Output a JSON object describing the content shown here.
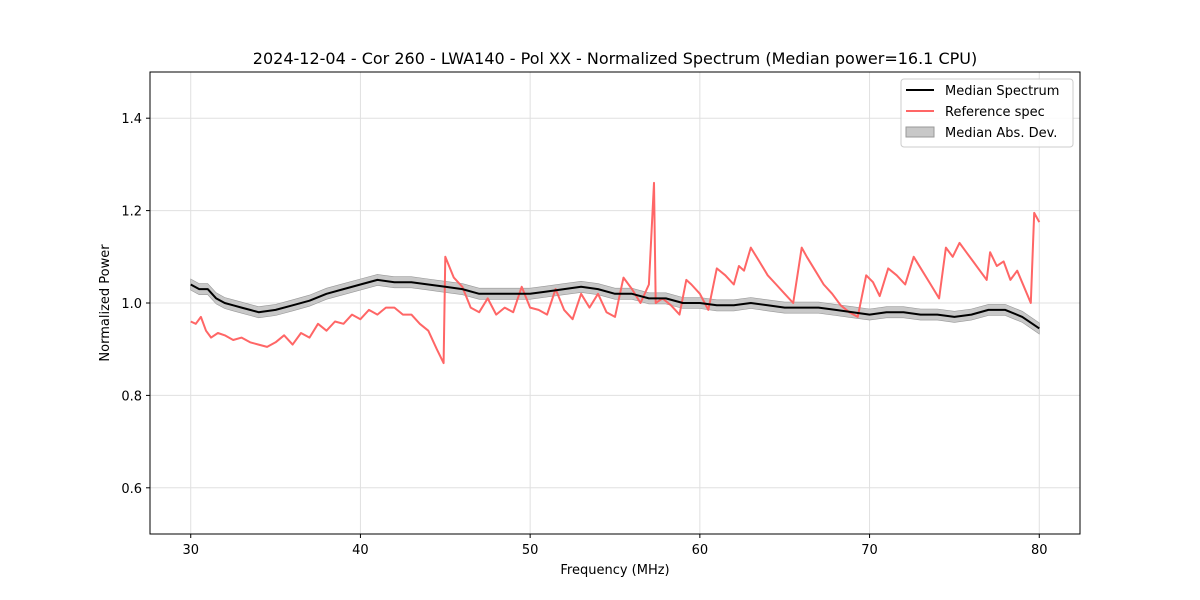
{
  "chart_data": {
    "type": "line",
    "title": "2024-12-04 - Cor 260 - LWA140 - Pol XX - Normalized Spectrum (Median power=16.1 CPU)",
    "xlabel": "Frequency (MHz)",
    "ylabel": "Normalized Power",
    "xlim": [
      27.6,
      82.4
    ],
    "ylim": [
      0.5,
      1.5
    ],
    "xticks": [
      30,
      40,
      50,
      60,
      70,
      80
    ],
    "yticks": [
      0.6,
      0.8,
      1.0,
      1.2,
      1.4
    ],
    "xtick_labels": [
      "30",
      "40",
      "50",
      "60",
      "70",
      "80"
    ],
    "ytick_labels": [
      "0.6",
      "0.8",
      "1.0",
      "1.2",
      "1.4"
    ],
    "grid": true,
    "legend_position": "top-right",
    "legend": [
      "Median Spectrum",
      "Reference spec",
      "Median Abs. Dev."
    ],
    "colors": {
      "median": "#000000",
      "reference": "#ff6666",
      "mad_fill": "#c8c8c8",
      "grid": "#e0e0e0"
    },
    "series": [
      {
        "name": "Median Spectrum",
        "x": [
          30,
          30.5,
          31,
          31.5,
          32,
          32.5,
          33,
          33.5,
          34,
          35,
          36,
          37,
          38,
          39,
          40,
          41,
          42,
          43,
          44,
          45,
          46,
          47,
          48,
          49,
          50,
          51,
          52,
          53,
          54,
          55,
          56,
          57,
          58,
          59,
          60,
          61,
          62,
          63,
          64,
          65,
          66,
          67,
          68,
          69,
          70,
          71,
          72,
          73,
          74,
          75,
          76,
          77,
          78,
          79,
          80
        ],
        "values": [
          1.04,
          1.03,
          1.03,
          1.01,
          1.0,
          0.995,
          0.99,
          0.985,
          0.98,
          0.985,
          0.995,
          1.005,
          1.02,
          1.03,
          1.04,
          1.05,
          1.045,
          1.045,
          1.04,
          1.035,
          1.03,
          1.02,
          1.02,
          1.02,
          1.02,
          1.025,
          1.03,
          1.035,
          1.03,
          1.02,
          1.02,
          1.01,
          1.01,
          1.0,
          1.0,
          0.995,
          0.995,
          1.0,
          0.995,
          0.99,
          0.99,
          0.99,
          0.985,
          0.98,
          0.975,
          0.98,
          0.98,
          0.975,
          0.975,
          0.97,
          0.975,
          0.985,
          0.985,
          0.97,
          0.945
        ]
      },
      {
        "name": "Reference spec",
        "x": [
          30,
          30.3,
          30.6,
          30.9,
          31.2,
          31.6,
          32,
          32.5,
          33,
          33.5,
          34,
          34.5,
          35,
          35.5,
          36,
          36.5,
          37,
          37.5,
          38,
          38.5,
          39,
          39.5,
          40,
          40.5,
          41,
          41.5,
          42,
          42.5,
          43,
          43.5,
          44,
          44.5,
          44.9,
          45.0,
          45.5,
          46,
          46.5,
          47,
          47.5,
          48,
          48.5,
          49,
          49.5,
          50,
          50.5,
          51,
          51.5,
          52,
          52.5,
          53,
          53.5,
          54,
          54.5,
          55,
          55.5,
          56,
          56.5,
          57,
          57.3,
          57.4,
          57.8,
          58.3,
          58.8,
          59.2,
          59.5,
          60,
          60.5,
          61,
          61.5,
          62,
          62.3,
          62.6,
          63,
          63.5,
          64,
          64.5,
          65,
          65.5,
          66,
          66.3,
          66.8,
          67.3,
          67.8,
          68.3,
          68.8,
          69.3,
          69.8,
          70.2,
          70.6,
          71.1,
          71.6,
          72.1,
          72.6,
          73.1,
          73.6,
          74.1,
          74.5,
          74.9,
          75.3,
          75.7,
          76.1,
          76.5,
          76.9,
          77.1,
          77.5,
          77.9,
          78.3,
          78.7,
          79.1,
          79.5,
          79.7,
          80.0
        ],
        "values": [
          0.96,
          0.955,
          0.97,
          0.94,
          0.925,
          0.935,
          0.93,
          0.92,
          0.925,
          0.915,
          0.91,
          0.905,
          0.915,
          0.93,
          0.91,
          0.935,
          0.925,
          0.955,
          0.94,
          0.96,
          0.955,
          0.975,
          0.965,
          0.985,
          0.975,
          0.99,
          0.99,
          0.975,
          0.975,
          0.955,
          0.94,
          0.9,
          0.87,
          1.1,
          1.055,
          1.035,
          0.99,
          0.98,
          1.01,
          0.975,
          0.99,
          0.98,
          1.035,
          0.99,
          0.985,
          0.975,
          1.03,
          0.985,
          0.965,
          1.02,
          0.99,
          1.02,
          0.98,
          0.97,
          1.055,
          1.03,
          1.0,
          1.04,
          1.26,
          1.0,
          1.01,
          0.995,
          0.975,
          1.05,
          1.04,
          1.02,
          0.985,
          1.075,
          1.06,
          1.04,
          1.08,
          1.07,
          1.12,
          1.09,
          1.06,
          1.04,
          1.02,
          1.0,
          1.12,
          1.1,
          1.07,
          1.04,
          1.02,
          0.995,
          0.98,
          0.97,
          1.06,
          1.045,
          1.015,
          1.075,
          1.06,
          1.04,
          1.1,
          1.07,
          1.04,
          1.01,
          1.12,
          1.1,
          1.13,
          1.11,
          1.09,
          1.07,
          1.05,
          1.11,
          1.08,
          1.09,
          1.05,
          1.07,
          1.035,
          1.0,
          1.195,
          1.175
        ]
      }
    ],
    "mad_band_halfwidth": 0.012
  }
}
